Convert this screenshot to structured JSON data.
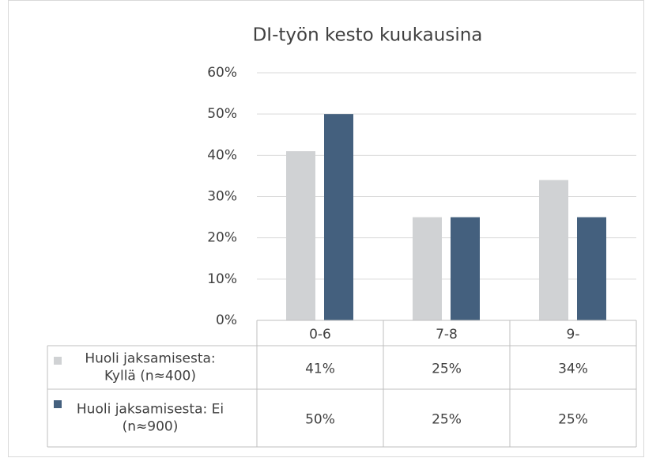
{
  "chart_data": {
    "type": "bar",
    "title": "DI-työn kesto kuukausina",
    "categories": [
      "0-6",
      "7-8",
      "9-"
    ],
    "series": [
      {
        "name": "Huoli jaksamisesta: Kyllä (n≈400)",
        "color": "#d0d2d4",
        "values": [
          41,
          25,
          34
        ],
        "value_labels": [
          "41%",
          "25%",
          "34%"
        ]
      },
      {
        "name": "Huoli jaksamisesta: Ei (n≈900)",
        "color": "#44607e",
        "values": [
          50,
          25,
          25
        ],
        "value_labels": [
          "50%",
          "25%",
          "25%"
        ]
      }
    ],
    "ylim": [
      0,
      60
    ],
    "yticks": [
      {
        "value": 0,
        "label": "0%"
      },
      {
        "value": 10,
        "label": "10%"
      },
      {
        "value": 20,
        "label": "20%"
      },
      {
        "value": 30,
        "label": "30%"
      },
      {
        "value": 40,
        "label": "40%"
      },
      {
        "value": 50,
        "label": "50%"
      },
      {
        "value": 60,
        "label": "60%"
      }
    ],
    "grid": true,
    "data_table": true
  }
}
